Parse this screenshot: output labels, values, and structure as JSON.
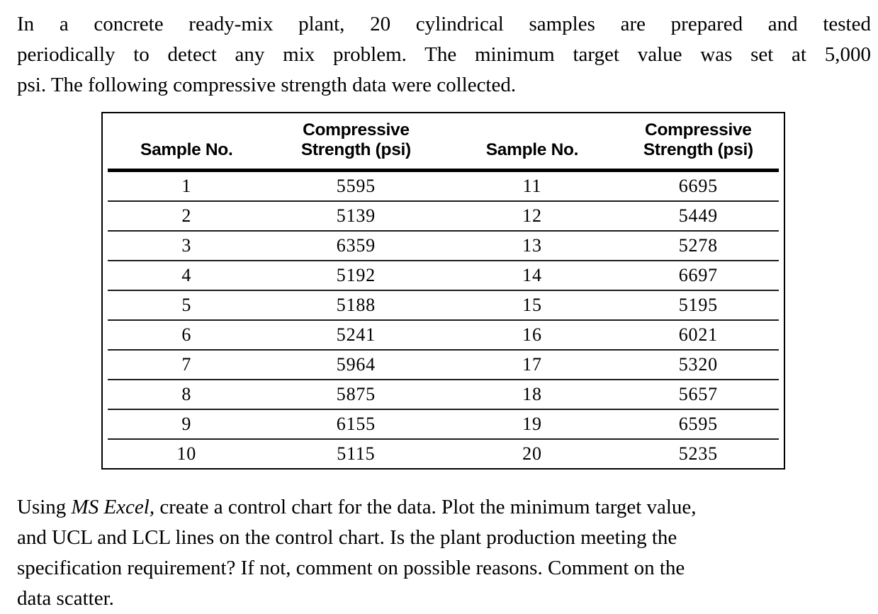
{
  "intro_lines": [
    "In a concrete ready-mix plant, 20 cylindrical samples are prepared and tested",
    "periodically to detect any mix problem. The minimum target value was set at 5,000",
    "psi. The following compressive strength data were collected."
  ],
  "table": {
    "header": {
      "sample_no": "Sample No.",
      "compressive_line1": "Compressive",
      "compressive_line2": "Strength (psi)"
    },
    "columns": [
      "Sample No.",
      "Compressive Strength (psi)",
      "Sample No.",
      "Compressive Strength (psi)"
    ],
    "rows": [
      [
        "1",
        "5595",
        "11",
        "6695"
      ],
      [
        "2",
        "5139",
        "12",
        "5449"
      ],
      [
        "3",
        "6359",
        "13",
        "5278"
      ],
      [
        "4",
        "5192",
        "14",
        "6697"
      ],
      [
        "5",
        "5188",
        "15",
        "5195"
      ],
      [
        "6",
        "5241",
        "16",
        "6021"
      ],
      [
        "7",
        "5964",
        "17",
        "5320"
      ],
      [
        "8",
        "5875",
        "18",
        "5657"
      ],
      [
        "9",
        "6155",
        "19",
        "6595"
      ],
      [
        "10",
        "5115",
        "20",
        "5235"
      ]
    ]
  },
  "question": {
    "line1_prefix": "Using ",
    "line1_italic": "MS Excel,",
    "line1_rest": " create a control chart for the data. Plot the minimum target value,",
    "line2": "and UCL and LCL lines on the control chart. Is the plant production meeting the",
    "line3": "specification requirement? If not, comment on possible reasons. Comment on the",
    "line4": "data scatter."
  }
}
